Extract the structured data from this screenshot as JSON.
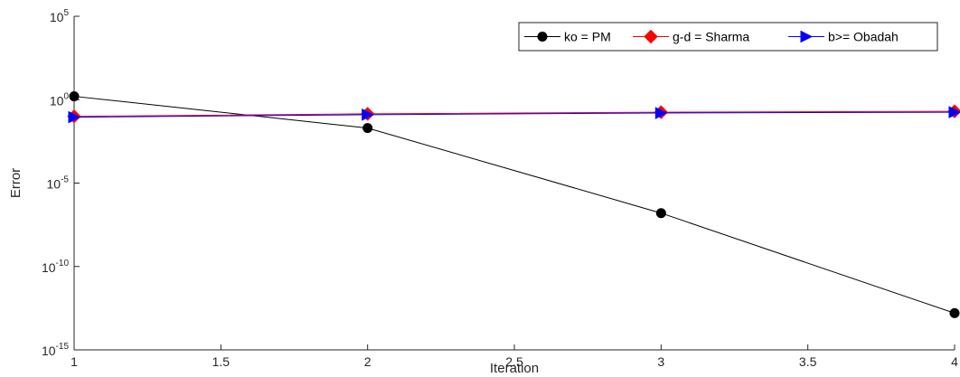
{
  "chart_data": {
    "type": "line",
    "xlabel": "Iteration",
    "ylabel": "Error",
    "xlim": [
      1,
      4
    ],
    "ylim_exponent": [
      -15,
      5
    ],
    "yscale": "log",
    "x_ticks": [
      "1",
      "1.5",
      "2",
      "2.5",
      "3",
      "3.5",
      "4"
    ],
    "y_tick_base": "10",
    "y_tick_exponents": [
      "-15",
      "-10",
      "-5",
      "0",
      "5"
    ],
    "grid": false,
    "legend_position": "top-right",
    "x": [
      1,
      2,
      3,
      4
    ],
    "series": [
      {
        "name": "ko = PM",
        "color": "#000000",
        "marker": "circle",
        "log10_values": [
          0.2,
          -1.7,
          -6.8,
          -12.8
        ]
      },
      {
        "name": "g-d = Sharma",
        "color": "#ff0000",
        "marker": "diamond",
        "log10_values": [
          -1.0,
          -0.85,
          -0.75,
          -0.7
        ]
      },
      {
        "name": "b>= Obadah",
        "color": "#0000ff",
        "marker": "triangle-right",
        "log10_values": [
          -1.05,
          -0.9,
          -0.8,
          -0.75
        ]
      }
    ]
  }
}
